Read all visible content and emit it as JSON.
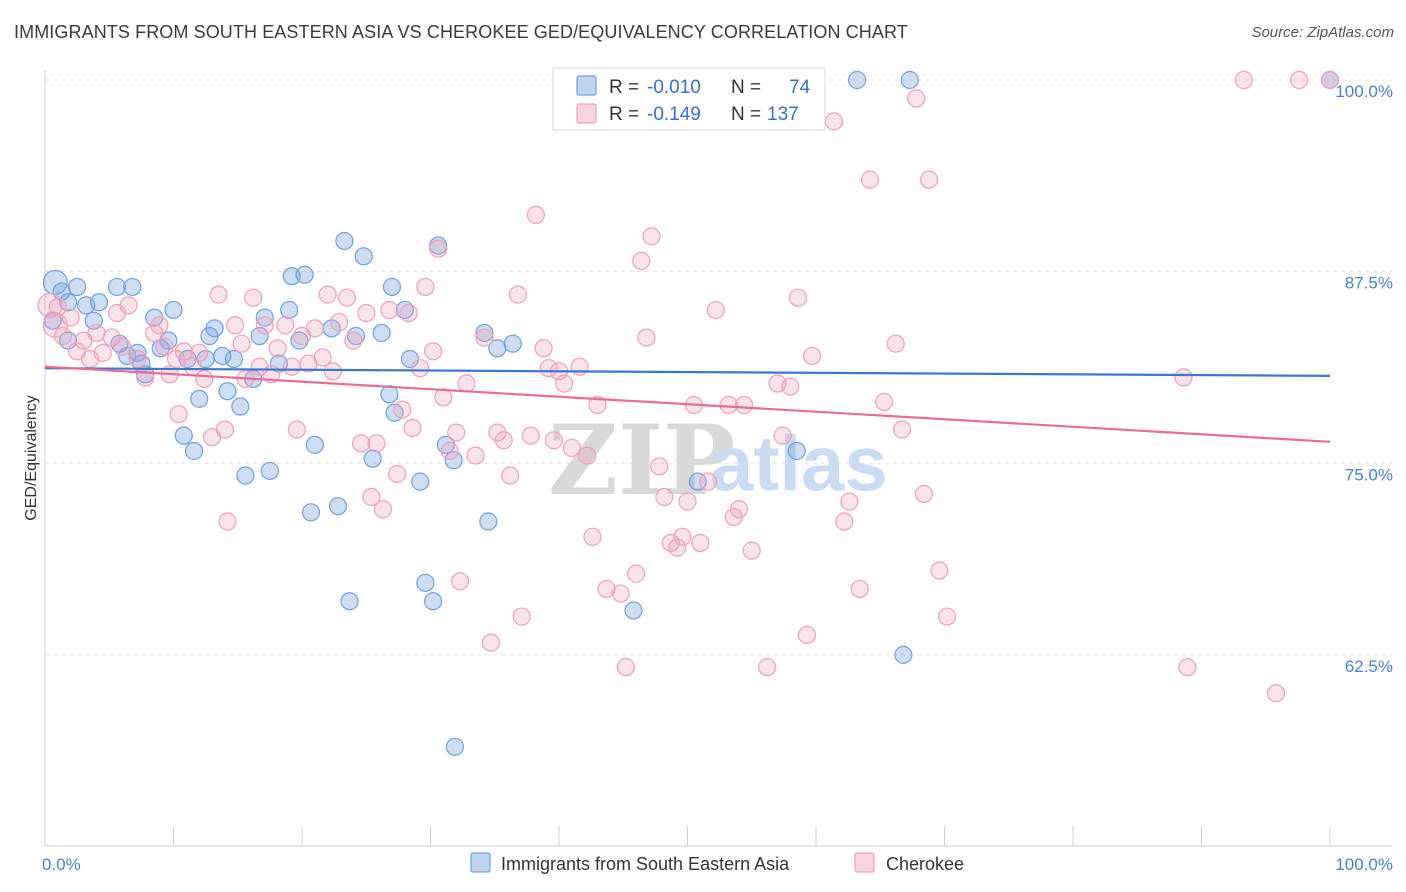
{
  "header": {
    "title": "IMMIGRANTS FROM SOUTH EASTERN ASIA VS CHEROKEE GED/EQUIVALENCY CORRELATION CHART",
    "source": "Source: ZipAtlas.com"
  },
  "watermark": {
    "zip": "ZIP",
    "atlas": "atlas"
  },
  "legend": {
    "rows": [
      {
        "r_label": "R =",
        "r_value": "-0.010",
        "n_label": "N =",
        "n_value": "74",
        "color": "#6fa0e0"
      },
      {
        "r_label": "R =",
        "r_value": "-0.149",
        "n_label": "N =",
        "n_value": "137",
        "color": "#f0a0bb"
      }
    ]
  },
  "bottom_legend": {
    "items": [
      {
        "label": "Immigrants from South Eastern Asia",
        "color": "#6fa0e0"
      },
      {
        "label": "Cherokee",
        "color": "#f0a0bb"
      }
    ]
  },
  "chart_data": {
    "type": "scatter",
    "title": "IMMIGRANTS FROM SOUTH EASTERN ASIA VS CHEROKEE GED/EQUIVALENCY CORRELATION CHART",
    "xlabel": "",
    "ylabel": "GED/Equivalency",
    "xlim": [
      0,
      100
    ],
    "ylim": [
      52.5,
      101.5
    ],
    "x_tick_labels": [
      "0.0%",
      "100.0%"
    ],
    "y_ticks": [
      62.5,
      75.0,
      87.5,
      100.0
    ],
    "y_tick_labels": [
      "62.5%",
      "75.0%",
      "87.5%",
      "100.0%"
    ],
    "grid": true,
    "legend_position": "top-center",
    "series": [
      {
        "name": "Immigrants from South Eastern Asia",
        "color": "#6fa0e0",
        "trend": {
          "x": [
            0,
            100
          ],
          "y": [
            81.2,
            80.7
          ]
        },
        "points": [
          [
            0.8,
            86.8
          ],
          [
            1.3,
            86.2
          ],
          [
            1.8,
            85.5
          ],
          [
            2.5,
            86.5
          ],
          [
            3.2,
            85.3
          ],
          [
            4.2,
            85.5
          ],
          [
            5.6,
            86.5
          ],
          [
            6.8,
            86.5
          ],
          [
            0.6,
            84.3
          ],
          [
            1.8,
            83.0
          ],
          [
            3.8,
            84.3
          ],
          [
            5.8,
            82.8
          ],
          [
            6.4,
            82.0
          ],
          [
            7.2,
            82.2
          ],
          [
            7.5,
            81.5
          ],
          [
            7.8,
            80.8
          ],
          [
            8.5,
            84.5
          ],
          [
            9.0,
            82.5
          ],
          [
            9.6,
            83.0
          ],
          [
            10.0,
            85.0
          ],
          [
            10.8,
            76.8
          ],
          [
            11.1,
            81.8
          ],
          [
            11.6,
            75.8
          ],
          [
            12.0,
            79.2
          ],
          [
            12.5,
            81.8
          ],
          [
            12.8,
            83.3
          ],
          [
            13.2,
            83.8
          ],
          [
            13.8,
            82.0
          ],
          [
            14.2,
            79.7
          ],
          [
            14.7,
            81.8
          ],
          [
            15.2,
            78.7
          ],
          [
            15.6,
            74.2
          ],
          [
            16.2,
            80.5
          ],
          [
            16.7,
            83.3
          ],
          [
            17.1,
            84.5
          ],
          [
            17.5,
            74.5
          ],
          [
            18.2,
            81.5
          ],
          [
            19.0,
            85.0
          ],
          [
            19.2,
            87.2
          ],
          [
            19.8,
            83.0
          ],
          [
            20.2,
            87.3
          ],
          [
            20.7,
            71.8
          ],
          [
            21.0,
            76.2
          ],
          [
            22.3,
            83.8
          ],
          [
            22.8,
            72.2
          ],
          [
            23.3,
            89.5
          ],
          [
            23.7,
            66.0
          ],
          [
            24.2,
            83.3
          ],
          [
            24.8,
            88.5
          ],
          [
            25.5,
            75.3
          ],
          [
            26.2,
            83.5
          ],
          [
            26.8,
            79.5
          ],
          [
            27.0,
            86.5
          ],
          [
            27.2,
            78.3
          ],
          [
            28.0,
            85.0
          ],
          [
            28.4,
            81.8
          ],
          [
            29.2,
            73.8
          ],
          [
            29.6,
            67.2
          ],
          [
            30.2,
            66.0
          ],
          [
            30.6,
            89.2
          ],
          [
            31.2,
            76.2
          ],
          [
            31.8,
            75.2
          ],
          [
            34.2,
            83.5
          ],
          [
            34.5,
            71.2
          ],
          [
            35.2,
            82.5
          ],
          [
            36.4,
            82.8
          ],
          [
            45.8,
            65.4
          ],
          [
            50.8,
            73.8
          ],
          [
            31.9,
            56.5
          ],
          [
            58.5,
            75.8
          ],
          [
            63.2,
            100.0
          ],
          [
            67.3,
            100.0
          ],
          [
            66.8,
            62.5
          ],
          [
            100.0,
            100.0
          ]
        ]
      },
      {
        "name": "Cherokee",
        "color": "#f0a0bb",
        "trend": {
          "x": [
            0,
            100
          ],
          "y": [
            81.3,
            76.4
          ]
        },
        "points": [
          [
            0.4,
            85.3
          ],
          [
            0.8,
            84.0
          ],
          [
            1.0,
            85.2
          ],
          [
            1.4,
            83.3
          ],
          [
            2.0,
            84.5
          ],
          [
            2.5,
            82.3
          ],
          [
            3.0,
            83.0
          ],
          [
            3.5,
            81.8
          ],
          [
            4.0,
            83.5
          ],
          [
            4.5,
            82.2
          ],
          [
            5.2,
            83.2
          ],
          [
            5.6,
            84.8
          ],
          [
            6.0,
            82.6
          ],
          [
            6.5,
            85.3
          ],
          [
            7.2,
            81.8
          ],
          [
            7.8,
            80.6
          ],
          [
            8.5,
            83.5
          ],
          [
            8.9,
            84.0
          ],
          [
            9.3,
            82.6
          ],
          [
            9.7,
            80.8
          ],
          [
            10.2,
            81.8
          ],
          [
            10.4,
            78.2
          ],
          [
            10.8,
            82.3
          ],
          [
            11.5,
            81.3
          ],
          [
            12.0,
            82.2
          ],
          [
            12.4,
            80.5
          ],
          [
            13.0,
            76.7
          ],
          [
            13.5,
            86.0
          ],
          [
            14.0,
            77.2
          ],
          [
            14.2,
            71.2
          ],
          [
            14.8,
            84.0
          ],
          [
            15.3,
            82.8
          ],
          [
            15.6,
            80.5
          ],
          [
            16.2,
            85.8
          ],
          [
            16.7,
            81.3
          ],
          [
            17.1,
            84.0
          ],
          [
            17.6,
            80.8
          ],
          [
            18.1,
            82.5
          ],
          [
            18.7,
            84.0
          ],
          [
            19.2,
            81.3
          ],
          [
            19.6,
            77.2
          ],
          [
            20.0,
            83.3
          ],
          [
            20.5,
            81.5
          ],
          [
            21.0,
            83.8
          ],
          [
            21.6,
            81.9
          ],
          [
            22.0,
            86.0
          ],
          [
            22.4,
            81.0
          ],
          [
            22.9,
            84.2
          ],
          [
            23.5,
            85.8
          ],
          [
            24.0,
            83.0
          ],
          [
            24.6,
            76.3
          ],
          [
            25.0,
            84.8
          ],
          [
            25.4,
            72.8
          ],
          [
            25.8,
            76.3
          ],
          [
            26.3,
            72.0
          ],
          [
            26.8,
            85.0
          ],
          [
            27.4,
            74.3
          ],
          [
            27.8,
            78.5
          ],
          [
            28.3,
            84.8
          ],
          [
            28.6,
            77.3
          ],
          [
            29.2,
            81.2
          ],
          [
            29.6,
            86.5
          ],
          [
            30.2,
            82.3
          ],
          [
            30.6,
            89.0
          ],
          [
            31.0,
            79.3
          ],
          [
            31.5,
            75.8
          ],
          [
            32.0,
            77.0
          ],
          [
            32.3,
            67.3
          ],
          [
            32.8,
            80.2
          ],
          [
            33.5,
            75.5
          ],
          [
            34.2,
            83.2
          ],
          [
            34.7,
            63.3
          ],
          [
            35.2,
            77.0
          ],
          [
            35.7,
            76.5
          ],
          [
            36.2,
            74.2
          ],
          [
            36.8,
            86.0
          ],
          [
            37.1,
            65.0
          ],
          [
            37.8,
            76.8
          ],
          [
            38.2,
            91.2
          ],
          [
            38.8,
            82.5
          ],
          [
            39.2,
            81.2
          ],
          [
            39.6,
            76.5
          ],
          [
            40.0,
            81.0
          ],
          [
            40.4,
            80.2
          ],
          [
            41.0,
            76.0
          ],
          [
            41.6,
            81.3
          ],
          [
            42.2,
            75.5
          ],
          [
            42.6,
            70.2
          ],
          [
            43.0,
            78.8
          ],
          [
            43.7,
            66.8
          ],
          [
            44.8,
            66.5
          ],
          [
            45.2,
            61.7
          ],
          [
            46.0,
            67.8
          ],
          [
            46.4,
            88.2
          ],
          [
            46.8,
            83.2
          ],
          [
            47.2,
            89.8
          ],
          [
            47.8,
            74.8
          ],
          [
            48.2,
            72.8
          ],
          [
            48.7,
            69.8
          ],
          [
            49.2,
            69.5
          ],
          [
            49.6,
            70.2
          ],
          [
            50.0,
            72.5
          ],
          [
            50.5,
            78.8
          ],
          [
            51.0,
            69.8
          ],
          [
            51.6,
            73.8
          ],
          [
            52.2,
            85.0
          ],
          [
            53.2,
            78.8
          ],
          [
            53.6,
            71.5
          ],
          [
            54.0,
            72.0
          ],
          [
            54.4,
            78.8
          ],
          [
            55.0,
            69.3
          ],
          [
            56.2,
            61.7
          ],
          [
            57.0,
            80.2
          ],
          [
            57.4,
            76.8
          ],
          [
            58.0,
            80.0
          ],
          [
            58.6,
            85.8
          ],
          [
            59.3,
            63.8
          ],
          [
            59.7,
            82.0
          ],
          [
            61.4,
            97.3
          ],
          [
            62.2,
            71.2
          ],
          [
            62.6,
            72.5
          ],
          [
            63.4,
            66.8
          ],
          [
            64.2,
            93.5
          ],
          [
            65.3,
            79.0
          ],
          [
            66.2,
            82.8
          ],
          [
            66.7,
            77.2
          ],
          [
            67.8,
            98.8
          ],
          [
            68.4,
            73.0
          ],
          [
            68.8,
            93.5
          ],
          [
            69.6,
            68.0
          ],
          [
            70.2,
            65.0
          ],
          [
            88.6,
            80.6
          ],
          [
            88.9,
            61.7
          ],
          [
            93.3,
            100.0
          ],
          [
            95.8,
            60.0
          ],
          [
            97.6,
            100.0
          ],
          [
            100.0,
            100.0
          ]
        ]
      }
    ]
  }
}
